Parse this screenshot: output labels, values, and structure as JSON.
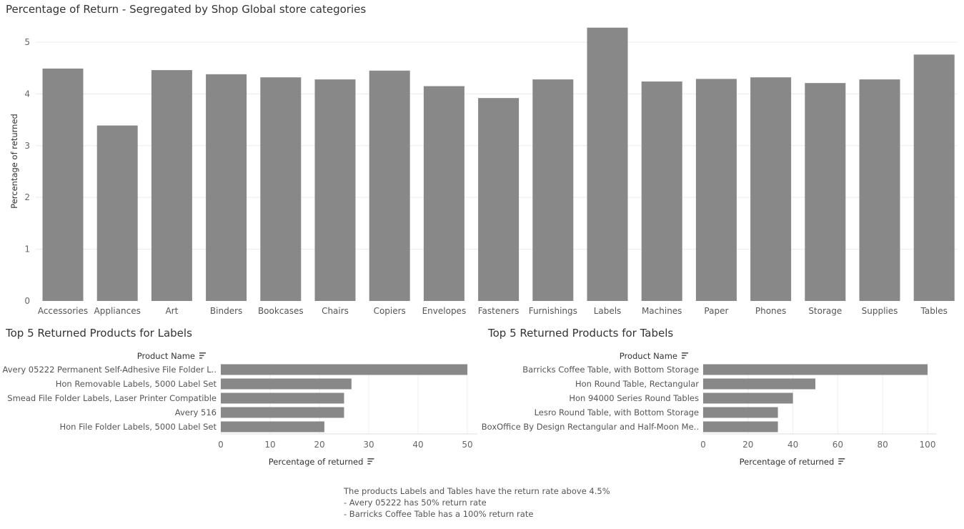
{
  "chart_data": [
    {
      "type": "bar",
      "title": "Percentage of Return - Segregated by Shop Global store categories",
      "xlabel": "",
      "ylabel": "Percentage of returned",
      "categories": [
        "Accessories",
        "Appliances",
        "Art",
        "Binders",
        "Bookcases",
        "Chairs",
        "Copiers",
        "Envelopes",
        "Fasteners",
        "Furnishings",
        "Labels",
        "Machines",
        "Paper",
        "Phones",
        "Storage",
        "Supplies",
        "Tables"
      ],
      "values": [
        4.49,
        3.39,
        4.46,
        4.38,
        4.32,
        4.28,
        4.45,
        4.15,
        3.92,
        4.28,
        5.28,
        4.24,
        4.29,
        4.32,
        4.21,
        4.28,
        4.76
      ],
      "ylim": [
        0,
        5.4
      ],
      "yticks": [
        0,
        1,
        2,
        3,
        4,
        5
      ],
      "grid": true,
      "bar_color": "#888888"
    },
    {
      "type": "bar",
      "orientation": "horizontal",
      "title": "Top 5 Returned Products for Labels",
      "axis_header": "Product Name",
      "xlabel": "Percentage of returned",
      "categories": [
        "Avery 05222 Permanent Self-Adhesive File Folder L..",
        "Hon Removable Labels, 5000 Label Set",
        "Smead File Folder Labels, Laser Printer Compatible",
        "Avery 516",
        "Hon File Folder Labels, 5000 Label Set"
      ],
      "values": [
        50,
        26.5,
        25,
        25,
        21
      ],
      "xlim": [
        0,
        52
      ],
      "xticks": [
        0,
        10,
        20,
        30,
        40,
        50
      ],
      "grid": true,
      "bar_color": "#888888"
    },
    {
      "type": "bar",
      "orientation": "horizontal",
      "title": "Top 5 Returned Products for Tabels",
      "axis_header": "Product Name",
      "xlabel": "Percentage of returned",
      "categories": [
        "Barricks Coffee Table, with Bottom Storage",
        "Hon Round Table, Rectangular",
        "Hon 94000 Series Round Tables",
        "Lesro Round Table, with Bottom Storage",
        "BoxOffice By Design Rectangular and Half-Moon Me.."
      ],
      "values": [
        100,
        50,
        40,
        33.3,
        33.3
      ],
      "xlim": [
        0,
        104
      ],
      "xticks": [
        0,
        20,
        40,
        60,
        80,
        100
      ],
      "grid": true,
      "bar_color": "#888888"
    }
  ],
  "note": {
    "line1": "The products Labels and Tables have the return rate above 4.5%",
    "line2": "- Avery 05222 has 50% return rate",
    "line3": "- Barricks Coffee Table has a 100% return rate"
  }
}
